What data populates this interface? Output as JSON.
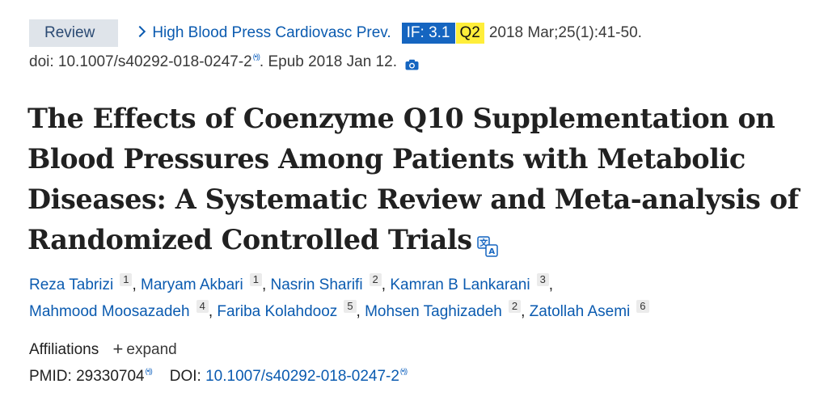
{
  "header": {
    "type_badge": "Review",
    "journal": "High Blood Press Cardiovasc Prev.",
    "impact_factor": "IF: 3.1",
    "quartile": "Q2",
    "pub_date": "2018 Mar;25(1):41-50.",
    "doi_line": "doi: 10.1007/s40292-018-0247-2",
    "epub": ". Epub 2018 Jan 12.",
    "wave_glyph": "(•))",
    "colors": {
      "badge_bg": "#dfe4ea",
      "link": "#0b5bb0",
      "if_bg": "#1565c0",
      "q_bg": "#ffee3a"
    }
  },
  "title": "The Effects of Coenzyme Q10 Supplementation on Blood Pressures Among Patients with Metabolic Diseases: A Systematic Review and Meta-analysis of Randomized Controlled Trials",
  "authors": [
    {
      "name": "Reza Tabrizi",
      "aff": "1"
    },
    {
      "name": "Maryam Akbari",
      "aff": "1"
    },
    {
      "name": "Nasrin Sharifi",
      "aff": "2"
    },
    {
      "name": "Kamran B Lankarani",
      "aff": "3"
    },
    {
      "name": "Mahmood Moosazadeh",
      "aff": "4"
    },
    {
      "name": "Fariba Kolahdooz",
      "aff": "5"
    },
    {
      "name": "Mohsen Taghizadeh",
      "aff": "2"
    },
    {
      "name": "Zatollah Asemi",
      "aff": "6"
    }
  ],
  "affiliations": {
    "label": "Affiliations",
    "expand": "expand",
    "plus": "+"
  },
  "identifiers": {
    "pmid_label": "PMID:",
    "pmid": "29330704",
    "doi_label": "DOI:",
    "doi": "10.1007/s40292-018-0247-2"
  },
  "icons": {
    "camera": "camera-icon",
    "translate": "translate-icon",
    "signal": "signal-wave-icon"
  }
}
